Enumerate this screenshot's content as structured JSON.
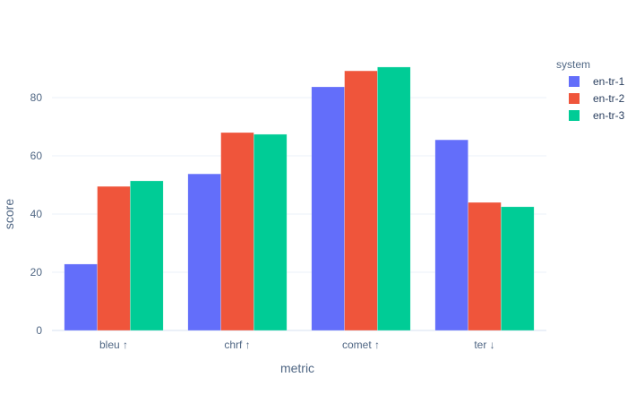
{
  "chart_data": {
    "type": "bar",
    "barmode": "group",
    "title": "",
    "xlabel": "metric",
    "ylabel": "score",
    "categories": [
      "bleu ↑",
      "chrf ↑",
      "comet ↑",
      "ter ↓"
    ],
    "series": [
      {
        "name": "en-tr-1",
        "color": "#636efa",
        "values": [
          22.8,
          53.8,
          83.7,
          65.5
        ]
      },
      {
        "name": "en-tr-2",
        "color": "#ef553b",
        "values": [
          49.5,
          68.0,
          89.2,
          44.0
        ]
      },
      {
        "name": "en-tr-3",
        "color": "#00cc96",
        "values": [
          51.4,
          67.4,
          90.5,
          42.5
        ]
      }
    ],
    "yticks": [
      0,
      20,
      40,
      60,
      80
    ],
    "ylim": [
      0,
      97
    ],
    "grid": true,
    "legend": {
      "title": "system",
      "position": "right-top"
    }
  }
}
